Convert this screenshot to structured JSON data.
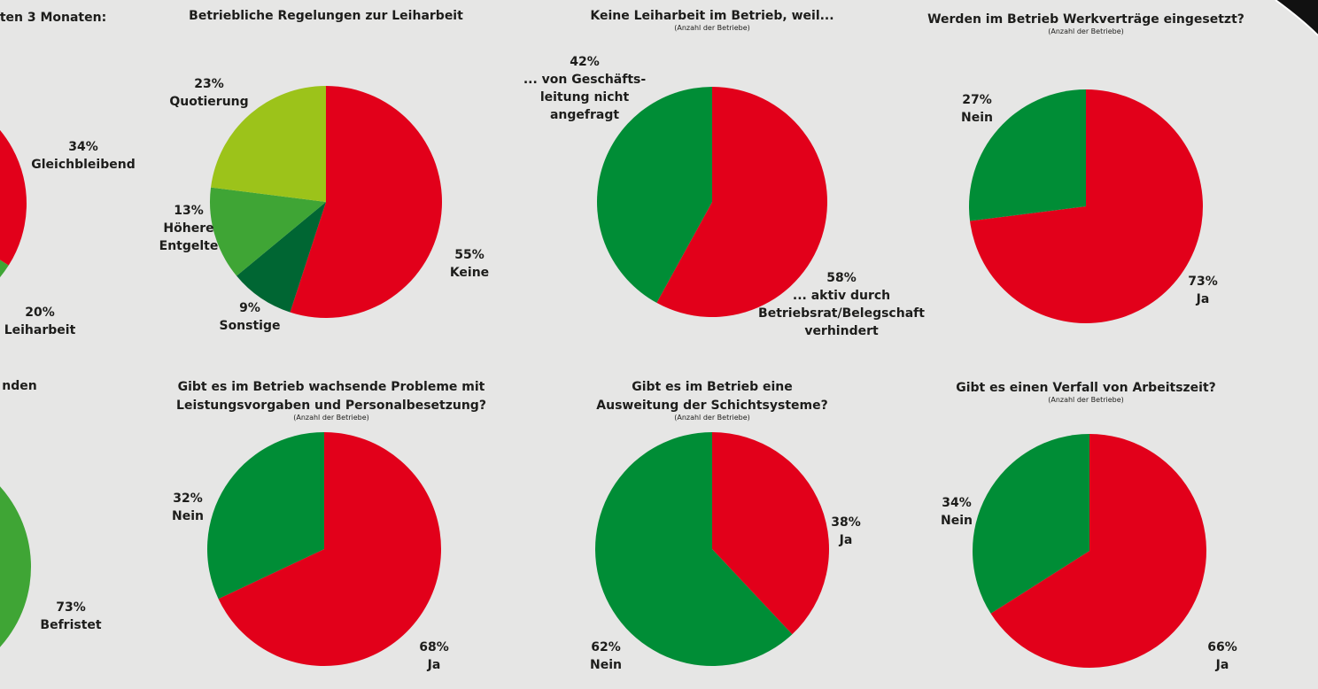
{
  "chart_data": [
    {
      "type": "pie",
      "title": "ten 3 Monaten:",
      "categories": [
        "Gleichbleibend",
        "Leiharbeit"
      ],
      "values": [
        34,
        20
      ],
      "value_labels": [
        "34%",
        "20%"
      ],
      "colors": [
        "#e2001a",
        "#3fa535"
      ]
    },
    {
      "type": "pie",
      "title": "Betriebliche Regelungen zur Leiharbeit",
      "categories": [
        "Keine",
        "Sonstige",
        "Höhere\nEntgelte",
        "Quotierung"
      ],
      "values": [
        55,
        9,
        13,
        23
      ],
      "value_labels": [
        "55%",
        "9%",
        "13%",
        "23%"
      ],
      "colors": [
        "#e2001a",
        "#006633",
        "#3fa535",
        "#9cc31a"
      ]
    },
    {
      "type": "pie",
      "title": "Keine Leiharbeit im Betrieb, weil...",
      "subtitle": "(Anzahl der Betriebe)",
      "categories": [
        "... aktiv durch\nBetriebsrat/Belegschaft\nverhindert",
        "... von Geschäfts-\nleitung nicht\nangefragt"
      ],
      "values": [
        58,
        42
      ],
      "value_labels": [
        "58%",
        "42%"
      ],
      "colors": [
        "#e2001a",
        "#008d36"
      ]
    },
    {
      "type": "pie",
      "title": "Werden im Betrieb Werkverträge eingesetzt?",
      "subtitle": "(Anzahl der Betriebe)",
      "categories": [
        "Ja",
        "Nein"
      ],
      "values": [
        73,
        27
      ],
      "value_labels": [
        "73%",
        "27%"
      ],
      "colors": [
        "#e2001a",
        "#008d36"
      ]
    },
    {
      "type": "pie",
      "title": "nden",
      "categories": [
        "Befristet"
      ],
      "values": [
        73
      ],
      "value_labels": [
        "73%"
      ],
      "colors": [
        "#3fa535"
      ]
    },
    {
      "type": "pie",
      "title": "Gibt es im Betrieb wachsende Probleme mit\nLeistungsvorgaben und Personalbesetzung?",
      "subtitle": "(Anzahl der Betriebe)",
      "categories": [
        "Ja",
        "Nein"
      ],
      "values": [
        68,
        32
      ],
      "value_labels": [
        "68%",
        "32%"
      ],
      "colors": [
        "#e2001a",
        "#008d36"
      ]
    },
    {
      "type": "pie",
      "title": "Gibt es im Betrieb eine\nAusweitung der Schichtsysteme?",
      "subtitle": "(Anzahl der Betriebe)",
      "categories": [
        "Ja",
        "Nein"
      ],
      "values": [
        38,
        62
      ],
      "value_labels": [
        "38%",
        "62%"
      ],
      "colors": [
        "#e2001a",
        "#008d36"
      ]
    },
    {
      "type": "pie",
      "title": "Gibt es einen Verfall von Arbeitszeit?",
      "subtitle": "(Anzahl der Betriebe)",
      "categories": [
        "Ja",
        "Nein"
      ],
      "values": [
        66,
        34
      ],
      "value_labels": [
        "66%",
        "34%"
      ],
      "colors": [
        "#e2001a",
        "#008d36"
      ]
    }
  ]
}
